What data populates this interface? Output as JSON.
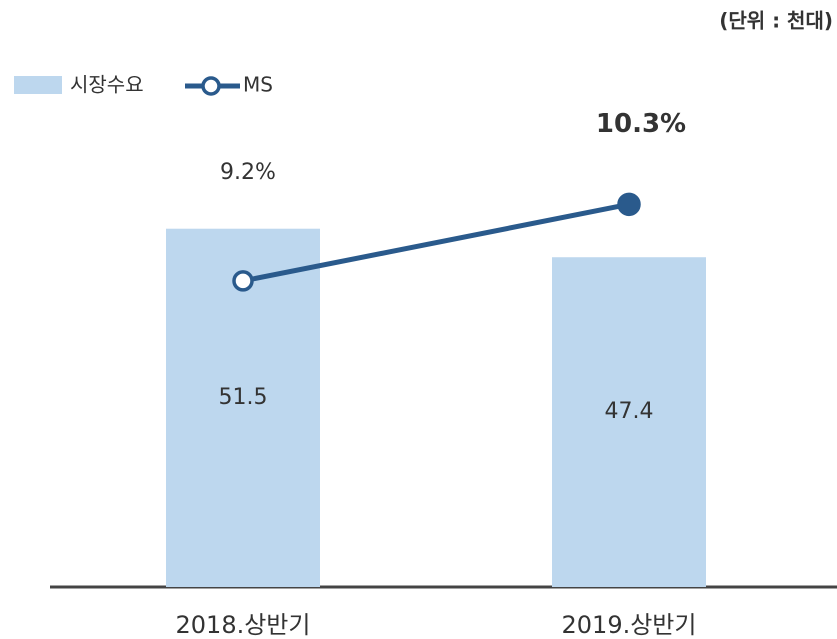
{
  "chart_data": {
    "type": "bar-line",
    "unit_label": "(단위 : 천대)",
    "categories": [
      "2018.상반기",
      "2019.상반기"
    ],
    "series": [
      {
        "name": "시장수요",
        "color": "#bdd7ee",
        "values": [
          51.5,
          47.4
        ]
      },
      {
        "name": "MS",
        "color": "#2a5a8c",
        "values": [
          9.2,
          10.3
        ],
        "value_labels": [
          "9.2%",
          "10.3%"
        ],
        "axis": "y2"
      }
    ],
    "ylim": [
      0,
      70
    ],
    "y2lim": [
      4.8,
      11.8
    ]
  }
}
